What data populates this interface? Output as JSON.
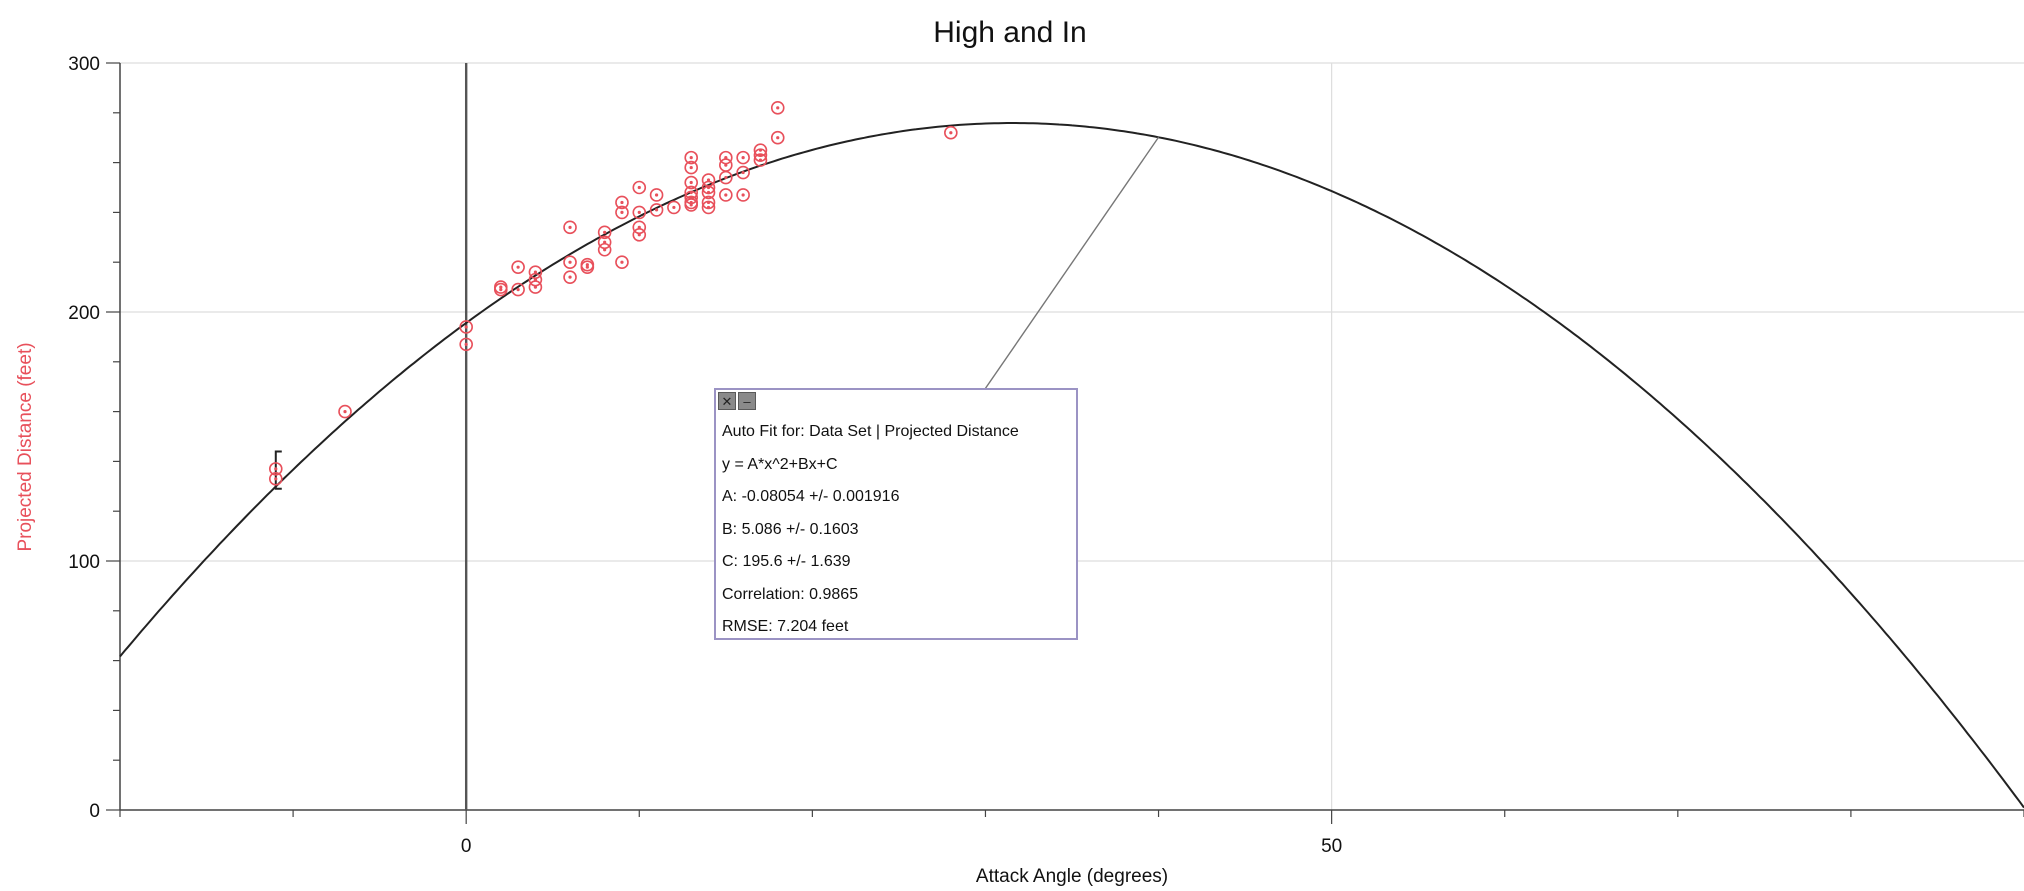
{
  "chart_data": {
    "type": "scatter",
    "title": "High and In",
    "xlabel": "Attack Angle (degrees)",
    "ylabel": "Projected Distance (feet)",
    "xlim": [
      -20,
      90
    ],
    "ylim": [
      0,
      300
    ],
    "x_ticks": [
      0,
      50
    ],
    "y_ticks": [
      0,
      100,
      200,
      300
    ],
    "grid": true,
    "series": [
      {
        "marker": "circle-dot",
        "color": "#e8505b",
        "x": [
          -11,
          -11,
          -7,
          0,
          0,
          2,
          2,
          3,
          3,
          4,
          4,
          4,
          6,
          6,
          6,
          7,
          7,
          8,
          8,
          8,
          9,
          9,
          9,
          10,
          10,
          10,
          10,
          11,
          11,
          12,
          13,
          13,
          13,
          13,
          13,
          13,
          13,
          14,
          14,
          14,
          14,
          14,
          15,
          15,
          15,
          15,
          16,
          16,
          16,
          17,
          17,
          17,
          18,
          18,
          28
        ],
        "y": [
          133,
          137,
          160,
          187,
          194,
          209,
          210,
          209,
          218,
          210,
          213,
          216,
          214,
          220,
          234,
          218,
          219,
          225,
          228,
          232,
          220,
          240,
          244,
          231,
          234,
          240,
          250,
          241,
          247,
          242,
          243,
          244,
          246,
          248,
          252,
          258,
          262,
          242,
          244,
          248,
          250,
          253,
          247,
          254,
          259,
          262,
          247,
          256,
          262,
          261,
          263,
          265,
          270,
          282,
          272
        ]
      }
    ],
    "fit": {
      "model": "quadratic",
      "A": -0.08054,
      "B": 5.086,
      "C": 195.6
    },
    "error_bar": {
      "x": -11,
      "y_low": 129,
      "y_high": 144
    }
  },
  "fit_box": {
    "lines": [
      "Auto Fit for: Data Set | Projected Distance",
      "y = A*x^2+Bx+C",
      "A: -0.08054 +/- 0.001916",
      "B: 5.086 +/- 0.1603",
      "C: 195.6 +/- 1.639",
      "Correlation: 0.9865",
      "RMSE: 7.204 feet"
    ],
    "close_icon": "close-icon",
    "minimize_icon": "minimize-icon",
    "leader_anchor_x": 40
  },
  "colors": {
    "axis": "#444444",
    "grid": "#dddddd",
    "curve": "#222222",
    "points": "#e8505b",
    "ylabel": "#e8505b",
    "box_border": "#9b93c4"
  }
}
